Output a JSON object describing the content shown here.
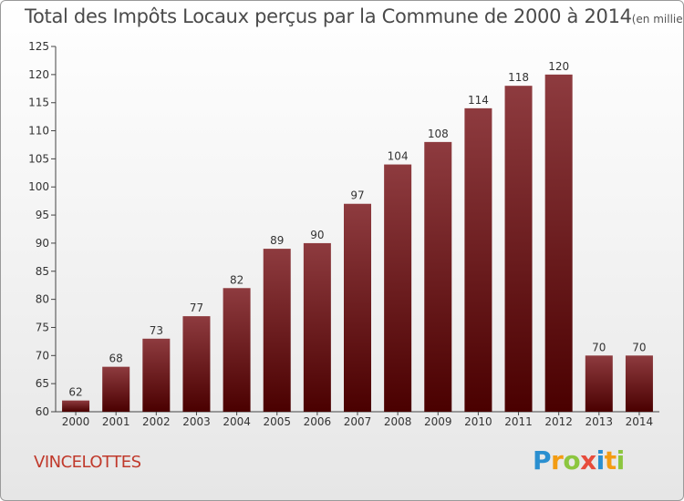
{
  "header": {
    "title": "Total des Impôts Locaux perçus par la Commune de 2000 à 2014",
    "unit": "(en milliers d'€)"
  },
  "footer": {
    "commune": "VINCELOTTES",
    "brand": "Proxiti",
    "brand_letters": [
      {
        "char": "P",
        "color": "#2a8fd0"
      },
      {
        "char": "r",
        "color": "#f39c12"
      },
      {
        "char": "o",
        "color": "#8cc63f"
      },
      {
        "char": "x",
        "color": "#e74c3c"
      },
      {
        "char": "i",
        "color": "#2a8fd0"
      },
      {
        "char": "t",
        "color": "#f39c12"
      },
      {
        "char": "i",
        "color": "#8cc63f"
      }
    ]
  },
  "colors": {
    "bar_top": "#8e3b3f",
    "bar_bottom": "#4a0000",
    "commune": "#c0392b"
  },
  "chart_data": {
    "type": "bar",
    "categories": [
      "2000",
      "2001",
      "2002",
      "2003",
      "2004",
      "2005",
      "2006",
      "2007",
      "2008",
      "2009",
      "2010",
      "2011",
      "2012",
      "2013",
      "2014"
    ],
    "values": [
      62,
      68,
      73,
      77,
      82,
      89,
      90,
      97,
      104,
      108,
      114,
      118,
      120,
      70,
      70
    ],
    "ylim": [
      60,
      125
    ],
    "yticks": [
      60,
      65,
      70,
      75,
      80,
      85,
      90,
      95,
      100,
      105,
      110,
      115,
      120,
      125
    ],
    "grid": false,
    "data_labels": true
  }
}
